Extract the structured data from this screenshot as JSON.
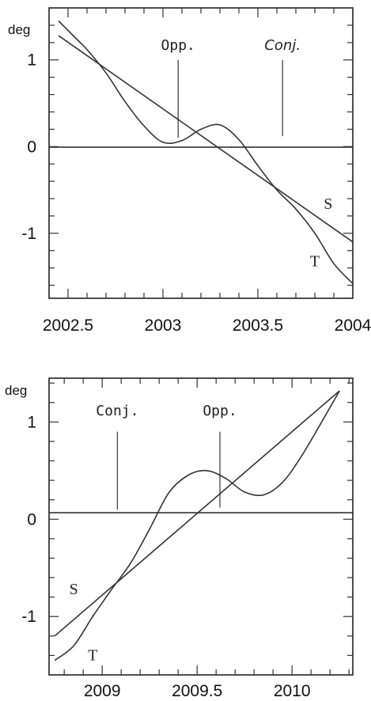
{
  "chart_data": [
    {
      "type": "line",
      "ylabel": "deg",
      "xlim": [
        2002.4,
        2004.0
      ],
      "ylim": [
        -1.75,
        1.6
      ],
      "xticks": [
        2002.5,
        2003,
        2003.5,
        2004
      ],
      "xtick_labels": [
        "2002.5",
        "2003",
        "2003.5",
        "2004"
      ],
      "yticks": [
        1,
        0,
        -1
      ],
      "ytick_labels": [
        "1",
        "0",
        "-1"
      ],
      "events": [
        {
          "label": "Opp.",
          "x": 2003.08,
          "y_from": 0.1,
          "y_to": 1.0,
          "italic": false
        },
        {
          "label": "Conj.",
          "x": 2003.63,
          "y_from": 0.12,
          "y_to": 1.0,
          "italic": true
        }
      ],
      "series": [
        {
          "name": "S",
          "x": [
            2002.45,
            2004.0
          ],
          "y": [
            1.28,
            -1.1
          ]
        },
        {
          "name": "T",
          "x": [
            2002.45,
            2002.55,
            2002.6,
            2002.7,
            2002.8,
            2002.9,
            2003.0,
            2003.1,
            2003.2,
            2003.3,
            2003.4,
            2003.5,
            2003.6,
            2003.7,
            2003.8,
            2003.9,
            2004.0
          ],
          "y": [
            1.45,
            1.23,
            1.12,
            0.85,
            0.52,
            0.24,
            0.05,
            0.07,
            0.2,
            0.25,
            0.08,
            -0.22,
            -0.5,
            -0.72,
            -1.0,
            -1.35,
            -1.58
          ]
        }
      ],
      "series_labels": [
        {
          "text": "S",
          "x": 2003.87,
          "y": -0.72
        },
        {
          "text": "T",
          "x": 2003.8,
          "y": -1.38
        }
      ]
    },
    {
      "type": "line",
      "ylabel": "deg",
      "xlim": [
        2008.72,
        2010.32
      ],
      "ylim": [
        -1.6,
        1.45
      ],
      "xticks": [
        2009,
        2009.5,
        2010
      ],
      "xtick_labels": [
        "2009",
        "2009.5",
        "2010"
      ],
      "yticks": [
        1,
        0,
        -1
      ],
      "ytick_labels": [
        "1",
        "0",
        "-1"
      ],
      "events": [
        {
          "label": "Conj.",
          "x": 2009.08,
          "y_from": 0.1,
          "y_to": 0.9,
          "italic": false
        },
        {
          "label": "Opp.",
          "x": 2009.62,
          "y_from": 0.12,
          "y_to": 0.9,
          "italic": false
        }
      ],
      "series": [
        {
          "name": "S",
          "x": [
            2008.75,
            2010.25
          ],
          "y": [
            -1.2,
            1.32
          ]
        },
        {
          "name": "T",
          "x": [
            2008.75,
            2008.85,
            2008.95,
            2009.05,
            2009.15,
            2009.25,
            2009.35,
            2009.45,
            2009.55,
            2009.65,
            2009.75,
            2009.85,
            2009.95,
            2010.05,
            2010.15,
            2010.25
          ],
          "y": [
            -1.45,
            -1.3,
            -1.0,
            -0.72,
            -0.45,
            -0.1,
            0.27,
            0.45,
            0.5,
            0.42,
            0.28,
            0.25,
            0.38,
            0.65,
            0.98,
            1.32
          ]
        }
      ],
      "series_labels": [
        {
          "text": "S",
          "x": 2008.85,
          "y": -0.77
        },
        {
          "text": "T",
          "x": 2008.95,
          "y": -1.45
        }
      ]
    }
  ]
}
